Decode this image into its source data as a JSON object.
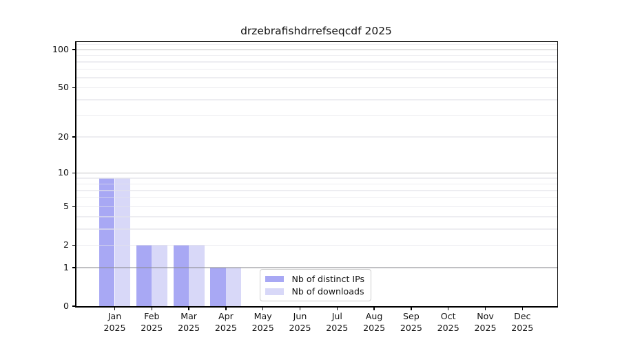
{
  "chart_data": {
    "type": "bar",
    "title": "drzebrafishdrrefseqcdf 2025",
    "x": {
      "months": [
        "Jan",
        "Feb",
        "Mar",
        "Apr",
        "May",
        "Jun",
        "Jul",
        "Aug",
        "Sep",
        "Oct",
        "Nov",
        "Dec"
      ],
      "year": "2025"
    },
    "series": [
      {
        "name": "Nb of distinct IPs",
        "color": "#a8a8f4",
        "values": [
          9,
          2,
          2,
          1,
          0,
          0,
          0,
          0,
          0,
          0,
          0,
          0
        ]
      },
      {
        "name": "Nb of downloads",
        "color": "#d8d8f8",
        "values": [
          9,
          2,
          2,
          1,
          0,
          0,
          0,
          0,
          0,
          0,
          0,
          0
        ]
      }
    ],
    "yscale": "log1p",
    "ylim": [
      0,
      115
    ],
    "y_tick_labels": [
      100,
      50,
      20,
      10,
      5,
      2,
      1,
      0
    ],
    "y_grid_strong": [
      1,
      10,
      100
    ],
    "y_grid_light": [
      2,
      5,
      20,
      50,
      3,
      4,
      6,
      7,
      8,
      9,
      30,
      40,
      60,
      70,
      80,
      90,
      110
    ],
    "grid": "both",
    "legend": {
      "position": "lower-center-inside"
    }
  }
}
